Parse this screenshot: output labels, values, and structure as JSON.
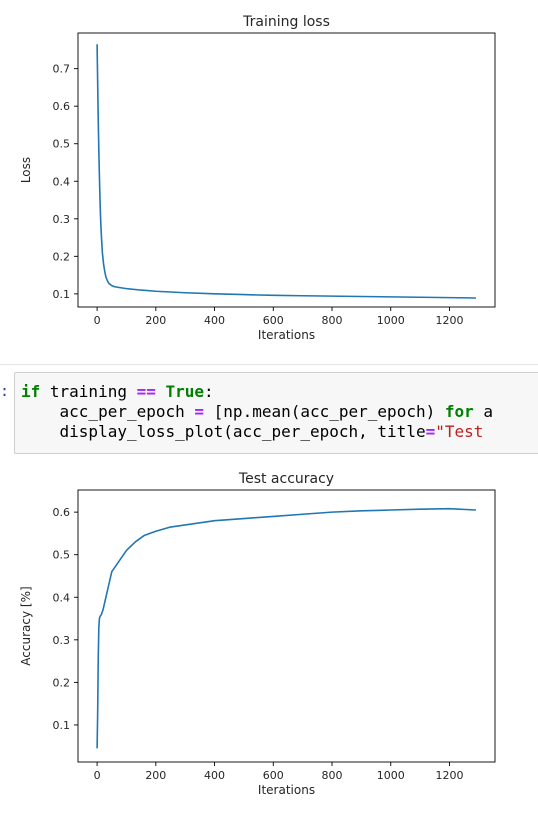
{
  "chart_data": [
    {
      "type": "line",
      "title": "Training loss",
      "xlabel": "Iterations",
      "ylabel": "Loss",
      "xlim": [
        -65,
        1355
      ],
      "ylim": [
        0.065,
        0.795
      ],
      "xticks": [
        0,
        200,
        400,
        600,
        800,
        1000,
        1200
      ],
      "yticks": [
        0.1,
        0.2,
        0.3,
        0.4,
        0.5,
        0.6,
        0.7
      ],
      "grid": false,
      "color": "#1f77b4",
      "x": [
        0,
        2,
        4,
        6,
        8,
        10,
        12,
        15,
        18,
        22,
        26,
        30,
        35,
        40,
        50,
        60,
        75,
        100,
        150,
        200,
        300,
        400,
        500,
        600,
        700,
        800,
        900,
        1000,
        1100,
        1200,
        1290
      ],
      "y": [
        0.765,
        0.66,
        0.56,
        0.48,
        0.41,
        0.35,
        0.3,
        0.25,
        0.21,
        0.18,
        0.16,
        0.145,
        0.135,
        0.128,
        0.122,
        0.119,
        0.117,
        0.114,
        0.11,
        0.107,
        0.103,
        0.1,
        0.098,
        0.096,
        0.095,
        0.094,
        0.093,
        0.092,
        0.091,
        0.09,
        0.089
      ]
    },
    {
      "type": "line",
      "title": "Test accuracy",
      "xlabel": "Iterations",
      "ylabel": "Accuracy [%]",
      "xlim": [
        -65,
        1355
      ],
      "ylim": [
        0.013,
        0.652
      ],
      "xticks": [
        0,
        200,
        400,
        600,
        800,
        1000,
        1200
      ],
      "yticks": [
        0.1,
        0.2,
        0.3,
        0.4,
        0.5,
        0.6
      ],
      "grid": false,
      "color": "#1f77b4",
      "x": [
        0,
        2,
        4,
        6,
        8,
        10,
        15,
        20,
        30,
        40,
        50,
        60,
        80,
        100,
        130,
        160,
        200,
        250,
        300,
        400,
        500,
        600,
        700,
        800,
        900,
        1000,
        1100,
        1200,
        1290
      ],
      "y": [
        0.045,
        0.13,
        0.26,
        0.33,
        0.35,
        0.355,
        0.36,
        0.37,
        0.4,
        0.43,
        0.46,
        0.47,
        0.49,
        0.51,
        0.53,
        0.545,
        0.555,
        0.565,
        0.57,
        0.58,
        0.585,
        0.59,
        0.595,
        0.6,
        0.603,
        0.605,
        0.607,
        0.608,
        0.605
      ]
    }
  ],
  "code": {
    "prompt": ":",
    "line1": {
      "kw_if": "if",
      "text1": " training ",
      "op_eq": "==",
      "text2": " ",
      "kw_true": "True",
      "text3": ":"
    },
    "line2": {
      "text1": "    acc_per_epoch ",
      "op_eq": "=",
      "text2": " [np.mean(acc_per_epoch) ",
      "kw_for": "for",
      "text3": " a"
    },
    "line3": {
      "text1": "    display_loss_plot(acc_per_epoch, title",
      "op_eq": "=",
      "str": "\"Test "
    }
  }
}
